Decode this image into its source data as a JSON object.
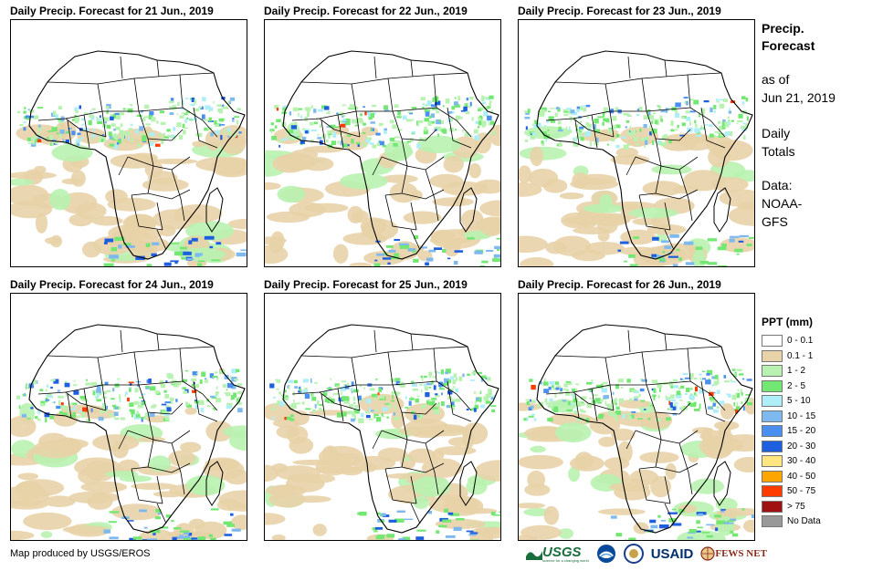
{
  "panels": [
    {
      "title": "Daily Precip. Forecast for 21 Jun., 2019",
      "seed": 21
    },
    {
      "title": "Daily Precip. Forecast for 22 Jun., 2019",
      "seed": 22
    },
    {
      "title": "Daily Precip. Forecast for 23 Jun., 2019",
      "seed": 23
    },
    {
      "title": "Daily Precip. Forecast for 24 Jun., 2019",
      "seed": 24
    },
    {
      "title": "Daily Precip. Forecast for 25 Jun., 2019",
      "seed": 25
    },
    {
      "title": "Daily Precip. Forecast for 26 Jun., 2019",
      "seed": 26
    }
  ],
  "side": {
    "title_line1": "Precip.",
    "title_line2": "Forecast",
    "asof_line1": "as of",
    "asof_line2": "Jun 21, 2019",
    "totals_line1": "Daily",
    "totals_line2": "Totals",
    "source_line1": "Data:",
    "source_line2": "NOAA-",
    "source_line3": "GFS"
  },
  "legend": {
    "title": "PPT (mm)",
    "items": [
      {
        "label": "0 - 0.1",
        "color": "#ffffff"
      },
      {
        "label": "0.1 - 1",
        "color": "#e8d3a9"
      },
      {
        "label": "1 - 2",
        "color": "#b8f2b0"
      },
      {
        "label": "2 - 5",
        "color": "#72e872"
      },
      {
        "label": "5 - 10",
        "color": "#aeeef8"
      },
      {
        "label": "10 - 15",
        "color": "#7db8ef"
      },
      {
        "label": "15 - 20",
        "color": "#4a8ff0"
      },
      {
        "label": "20 - 30",
        "color": "#1e5fe0"
      },
      {
        "label": "30 - 40",
        "color": "#ffe680"
      },
      {
        "label": "40 - 50",
        "color": "#ffa500"
      },
      {
        "label": "50 - 75",
        "color": "#ff3c00"
      },
      {
        "label": "> 75",
        "color": "#a01010"
      },
      {
        "label": "No Data",
        "color": "#999999"
      }
    ]
  },
  "credit": "Map produced by USGS/EROS",
  "logos": {
    "usgs": "USGS",
    "usgs_tag": "science for a changing world",
    "usaid": "USAID",
    "fews": "FEWS NET"
  }
}
